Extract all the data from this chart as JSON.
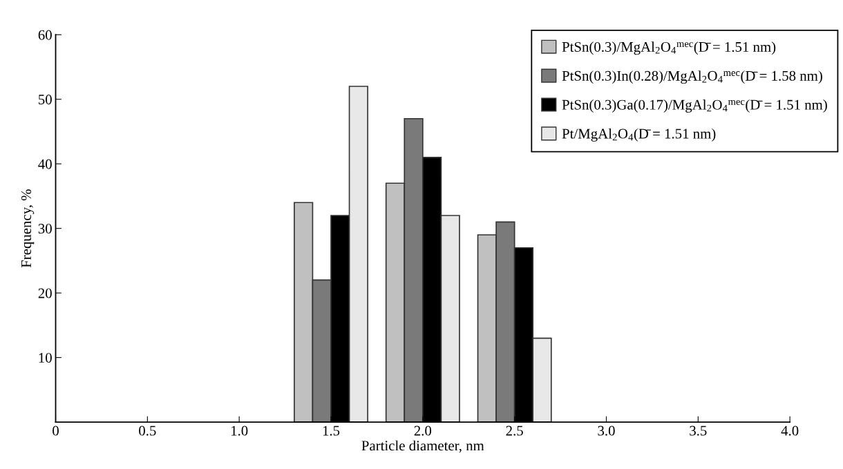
{
  "chart_data": {
    "type": "bar",
    "xlabel": "Particle diameter, nm",
    "ylabel": "Frequency, %",
    "x": [
      1.5,
      2.0,
      2.5
    ],
    "series": [
      {
        "name": "PtSn(0.3)/MgAl$_{2}$O$_{4}$$^{mec}$(D̄ = 1.51 nm)",
        "color": "#c0c0c0",
        "values": [
          34,
          37,
          29
        ]
      },
      {
        "name": "PtSn(0.3)In(0.28)/MgAl$_{2}$O$_{4}$$^{mec}$(D̄ = 1.58 nm)",
        "color": "#7a7a7a",
        "values": [
          22,
          47,
          31
        ]
      },
      {
        "name": "PtSn(0.3)Ga(0.17)/MgAl$_{2}$O$_{4}$$^{mec}$(D̄ = 1.51 nm)",
        "color": "#000000",
        "values": [
          32,
          41,
          27
        ]
      },
      {
        "name": "Pt/MgAl$_{2}$O$_{4}$(D̄ = 1.51 nm)",
        "color": "#e8e8e8",
        "values": [
          52,
          32,
          13
        ]
      }
    ],
    "xlim": [
      0,
      4.0
    ],
    "xticks": [
      0,
      {
        "value": 0.5,
        "label": "0.5"
      },
      {
        "value": 1.0,
        "label": "1.0"
      },
      {
        "value": 1.5,
        "label": "1.5"
      },
      {
        "value": 2.0,
        "label": "2.0"
      },
      {
        "value": 2.5,
        "label": "2.5"
      },
      {
        "value": 3.0,
        "label": "3.0"
      },
      {
        "value": 3.5,
        "label": "3.5"
      },
      {
        "value": 4.0,
        "label": "4.0"
      }
    ],
    "ylim": [
      0,
      60
    ],
    "yticks": [
      10,
      20,
      30,
      40,
      50,
      60
    ],
    "legend": "top right",
    "grid": false
  }
}
